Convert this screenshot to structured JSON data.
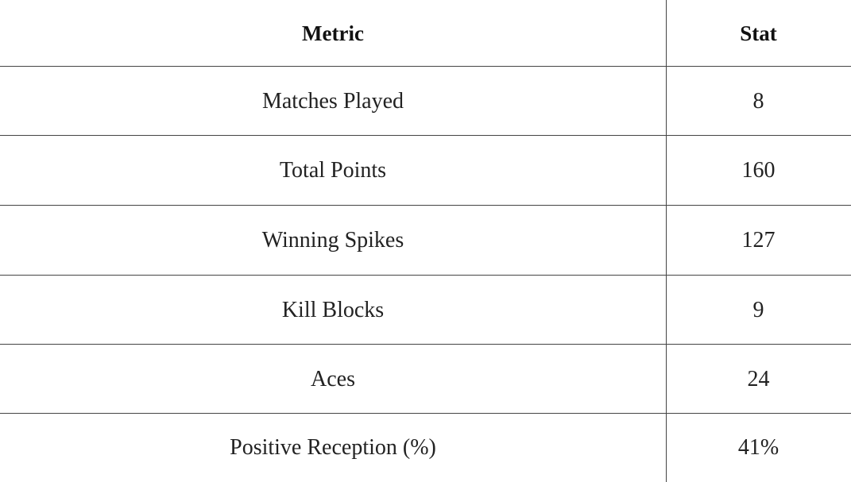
{
  "table": {
    "header": [
      "Metric",
      "Stat"
    ],
    "rows": [
      [
        "Matches Played",
        "8"
      ],
      [
        "Total Points",
        "160"
      ],
      [
        "Winning Spikes",
        "127"
      ],
      [
        "Kill Blocks",
        "9"
      ],
      [
        "Aces",
        "24"
      ],
      [
        "Positive Reception (%)",
        "41%"
      ]
    ]
  }
}
